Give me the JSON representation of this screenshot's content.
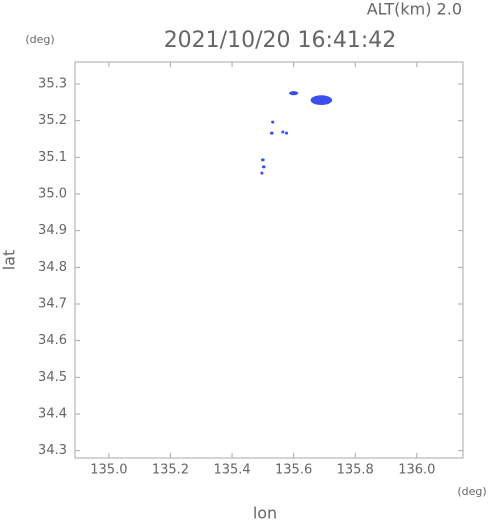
{
  "chart_data": {
    "type": "scatter",
    "title": "2021/10/20 16:41:42",
    "subtitle": "ALT(km) 2.0",
    "x_label": "lon",
    "y_label": "lat",
    "x_unit": "(deg)",
    "y_unit": "(deg)",
    "color": "#3b4ff0",
    "x": [
      135.69,
      135.6,
      135.532,
      135.529,
      135.565,
      135.577,
      135.5,
      135.503,
      135.497
    ],
    "values": [
      35.256,
      35.275,
      35.196,
      35.166,
      35.169,
      35.166,
      35.093,
      35.074,
      35.057
    ],
    "sizes": [
      0.07,
      0.03,
      0.01,
      0.012,
      0.01,
      0.01,
      0.012,
      0.012,
      0.01
    ],
    "xlim": [
      134.89,
      136.15
    ],
    "ylim": [
      34.28,
      35.36
    ],
    "xticks": [
      {
        "value": 135,
        "label": "135.0"
      },
      135.2,
      135.4,
      135.6,
      135.8,
      {
        "value": 136,
        "label": "136.0"
      }
    ],
    "yticks": [
      34.3,
      34.4,
      34.5,
      34.6,
      34.7,
      34.8,
      34.9,
      {
        "value": 35,
        "label": "35.0"
      },
      35.1,
      35.2,
      35.3
    ]
  }
}
